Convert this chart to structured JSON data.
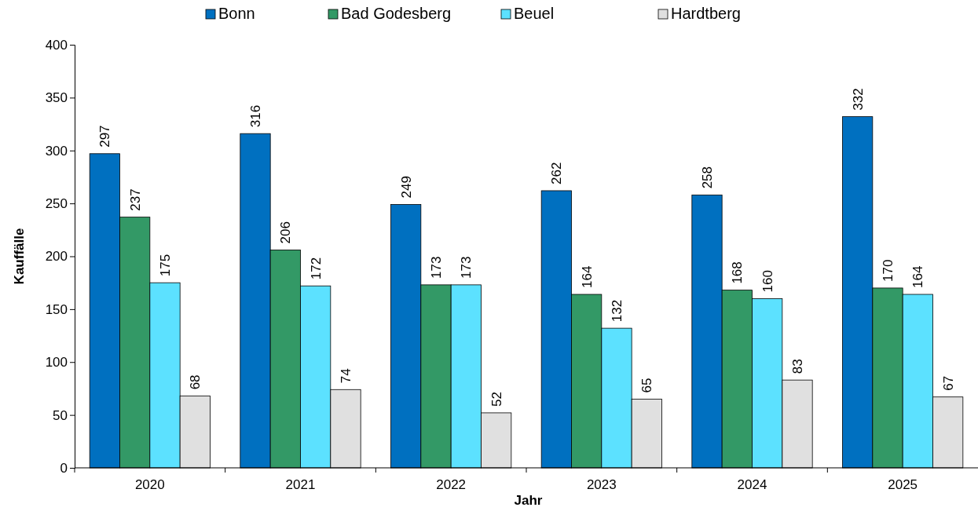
{
  "chart_data": {
    "type": "bar",
    "xlabel": "Jahr",
    "ylabel": "Kauffälle",
    "categories": [
      "2020",
      "2021",
      "2022",
      "2023",
      "2024",
      "2025"
    ],
    "series": [
      {
        "name": "Bonn",
        "color": "#0070c0",
        "values": [
          297,
          316,
          249,
          262,
          258,
          332
        ]
      },
      {
        "name": "Bad Godesberg",
        "color": "#339966",
        "values": [
          237,
          206,
          173,
          164,
          168,
          170
        ]
      },
      {
        "name": "Beuel",
        "color": "#5ce1ff",
        "values": [
          175,
          172,
          173,
          132,
          160,
          164
        ]
      },
      {
        "name": "Hardtberg",
        "color": "#e0e0e0",
        "values": [
          68,
          74,
          52,
          65,
          83,
          67
        ]
      }
    ],
    "ylim": [
      0,
      400
    ],
    "yticks": [
      0,
      50,
      100,
      150,
      200,
      250,
      300,
      350,
      400
    ],
    "data_labels": true,
    "legend": "top",
    "grid": false
  }
}
